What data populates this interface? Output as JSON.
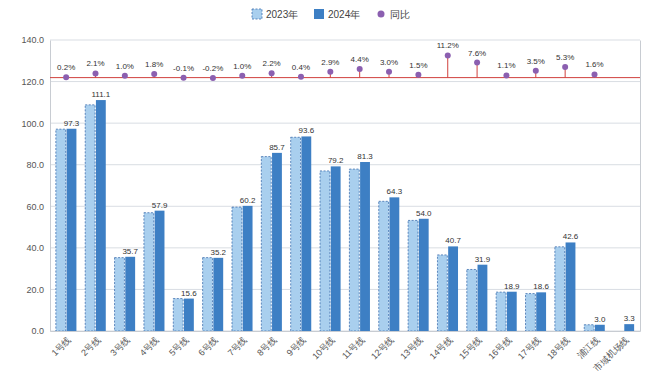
{
  "chart_data": {
    "type": "bar",
    "categories": [
      "1号线",
      "2号线",
      "3号线",
      "4号线",
      "5号线",
      "6号线",
      "7号线",
      "8号线",
      "9号线",
      "10号线",
      "11号线",
      "12号线",
      "13号线",
      "14号线",
      "15号线",
      "16号线",
      "17号线",
      "18号线",
      "浦江线",
      "市域机场线"
    ],
    "series": [
      {
        "name": "2023年",
        "color": "#a9cfee",
        "values": [
          97.1,
          108.8,
          35.3,
          56.9,
          15.6,
          35.3,
          59.6,
          83.9,
          93.2,
          77.0,
          77.9,
          62.4,
          53.2,
          36.6,
          29.6,
          18.7,
          18.0,
          40.5,
          3.0,
          null
        ]
      },
      {
        "name": "2024年",
        "color": "#3d7fc4",
        "data_labels": true,
        "values": [
          97.3,
          111.1,
          35.7,
          57.9,
          15.6,
          35.2,
          60.2,
          85.7,
          93.6,
          79.2,
          81.3,
          64.3,
          54.0,
          40.7,
          31.9,
          18.9,
          18.6,
          42.6,
          3.0,
          3.3
        ],
        "value_labels": [
          "97.3",
          "111.1",
          "35.7",
          "57.9",
          "15.6",
          "35.2",
          "60.2",
          "85.7",
          "93.6",
          "79.2",
          "81.3",
          "64.3",
          "54.0",
          "40.7",
          "31.9",
          "18.9",
          "18.6",
          "42.6",
          "3.0",
          "3.3"
        ]
      },
      {
        "name": "同比",
        "type": "scatter",
        "marker": "circle",
        "color": "#8b5fb0",
        "axis": "y2",
        "data_labels": true,
        "values": [
          0.2,
          2.1,
          1.0,
          1.8,
          -0.1,
          -0.2,
          1.0,
          2.2,
          0.4,
          2.9,
          4.4,
          3.0,
          1.5,
          11.2,
          7.6,
          1.1,
          3.5,
          5.3,
          1.6,
          null
        ],
        "value_labels": [
          "0.2%",
          "2.1%",
          "1.0%",
          "1.8%",
          "-0.1%",
          "-0.2%",
          "1.0%",
          "2.2%",
          "0.4%",
          "2.9%",
          "4.4%",
          "3.0%",
          "1.5%",
          "11.2%",
          "7.6%",
          "1.1%",
          "3.5%",
          "5.3%",
          "1.6%",
          null
        ]
      }
    ],
    "ylim": [
      0,
      140
    ],
    "yticks": [
      {
        "value": 0,
        "label": "0.0"
      },
      {
        "value": 20,
        "label": "20.0"
      },
      {
        "value": 40,
        "label": "40.0"
      },
      {
        "value": 60,
        "label": "60.0"
      },
      {
        "value": 80,
        "label": "80.0"
      },
      {
        "value": 100,
        "label": "100.0"
      },
      {
        "value": 120,
        "label": "120.0"
      },
      {
        "value": 140,
        "label": "140.0"
      }
    ],
    "y2lim": [
      -128,
      19
    ],
    "y2ticks": [],
    "grid": true,
    "legend": "top"
  }
}
